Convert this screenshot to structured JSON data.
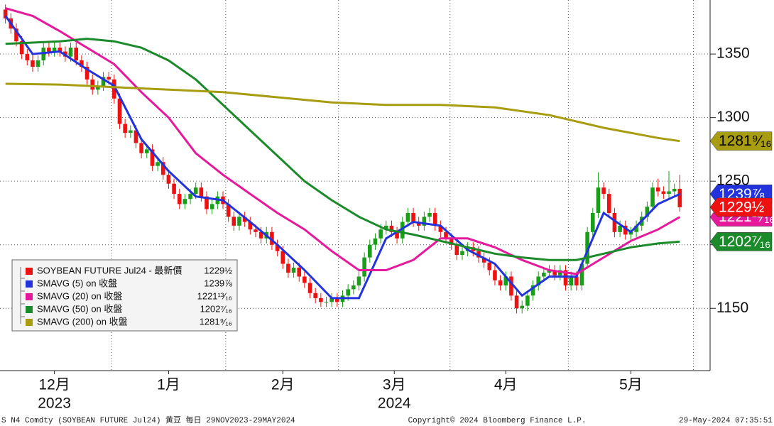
{
  "chart_data": {
    "type": "candlestick",
    "ohlc": [
      [
        1385,
        1389,
        1374,
        1378
      ],
      [
        1378,
        1382,
        1366,
        1370
      ],
      [
        1370,
        1374,
        1356,
        1360
      ],
      [
        1360,
        1364,
        1346,
        1350
      ],
      [
        1350,
        1354,
        1341,
        1345
      ],
      [
        1345,
        1349,
        1336,
        1340
      ],
      [
        1340,
        1349,
        1336,
        1345
      ],
      [
        1345,
        1359,
        1341,
        1355
      ],
      [
        1355,
        1359,
        1348,
        1352
      ],
      [
        1352,
        1359,
        1348,
        1355
      ],
      [
        1355,
        1359,
        1348,
        1352
      ],
      [
        1352,
        1356,
        1344,
        1348
      ],
      [
        1348,
        1359,
        1344,
        1355
      ],
      [
        1355,
        1359,
        1341,
        1345
      ],
      [
        1345,
        1349,
        1336,
        1340
      ],
      [
        1340,
        1344,
        1326,
        1330
      ],
      [
        1330,
        1334,
        1318,
        1322
      ],
      [
        1322,
        1329,
        1318,
        1325
      ],
      [
        1325,
        1336,
        1321,
        1332
      ],
      [
        1332,
        1336,
        1326,
        1330
      ],
      [
        1330,
        1334,
        1311,
        1315
      ],
      [
        1315,
        1319,
        1291,
        1295
      ],
      [
        1295,
        1299,
        1284,
        1288
      ],
      [
        1288,
        1294,
        1284,
        1290
      ],
      [
        1290,
        1294,
        1276,
        1280
      ],
      [
        1280,
        1284,
        1268,
        1272
      ],
      [
        1272,
        1279,
        1268,
        1275
      ],
      [
        1275,
        1279,
        1258,
        1262
      ],
      [
        1262,
        1269,
        1258,
        1265
      ],
      [
        1265,
        1269,
        1251,
        1255
      ],
      [
        1255,
        1259,
        1244,
        1248
      ],
      [
        1248,
        1252,
        1236,
        1240
      ],
      [
        1240,
        1244,
        1228,
        1232
      ],
      [
        1232,
        1240,
        1228,
        1236
      ],
      [
        1236,
        1244,
        1232,
        1240
      ],
      [
        1240,
        1249,
        1236,
        1245
      ],
      [
        1245,
        1249,
        1234,
        1238
      ],
      [
        1238,
        1242,
        1224,
        1228
      ],
      [
        1228,
        1236,
        1224,
        1232
      ],
      [
        1232,
        1242,
        1228,
        1238
      ],
      [
        1238,
        1242,
        1228,
        1232
      ],
      [
        1232,
        1236,
        1218,
        1222
      ],
      [
        1222,
        1226,
        1211,
        1215
      ],
      [
        1215,
        1226,
        1211,
        1222
      ],
      [
        1222,
        1226,
        1214,
        1218
      ],
      [
        1218,
        1222,
        1208,
        1212
      ],
      [
        1212,
        1216,
        1206,
        1210
      ],
      [
        1210,
        1214,
        1201,
        1205
      ],
      [
        1205,
        1214,
        1201,
        1210
      ],
      [
        1210,
        1214,
        1196,
        1200
      ],
      [
        1200,
        1204,
        1191,
        1195
      ],
      [
        1195,
        1199,
        1181,
        1185
      ],
      [
        1185,
        1189,
        1174,
        1178
      ],
      [
        1178,
        1186,
        1174,
        1182
      ],
      [
        1182,
        1186,
        1171,
        1175
      ],
      [
        1175,
        1179,
        1166,
        1170
      ],
      [
        1170,
        1174,
        1158,
        1162
      ],
      [
        1162,
        1166,
        1154,
        1158
      ],
      [
        1158,
        1162,
        1151,
        1155
      ],
      [
        1155,
        1159,
        1151,
        1155
      ],
      [
        1155,
        1162,
        1151,
        1158
      ],
      [
        1158,
        1162,
        1151,
        1155
      ],
      [
        1155,
        1164,
        1151,
        1160
      ],
      [
        1160,
        1169,
        1156,
        1165
      ],
      [
        1165,
        1172,
        1161,
        1168
      ],
      [
        1168,
        1179,
        1164,
        1175
      ],
      [
        1175,
        1194,
        1171,
        1190
      ],
      [
        1190,
        1204,
        1186,
        1200
      ],
      [
        1200,
        1209,
        1196,
        1205
      ],
      [
        1205,
        1216,
        1201,
        1212
      ],
      [
        1212,
        1219,
        1208,
        1215
      ],
      [
        1215,
        1219,
        1206,
        1210
      ],
      [
        1210,
        1214,
        1201,
        1205
      ],
      [
        1205,
        1222,
        1201,
        1218
      ],
      [
        1218,
        1229,
        1214,
        1225
      ],
      [
        1225,
        1229,
        1214,
        1218
      ],
      [
        1218,
        1222,
        1211,
        1215
      ],
      [
        1215,
        1226,
        1211,
        1222
      ],
      [
        1222,
        1229,
        1218,
        1225
      ],
      [
        1225,
        1229,
        1211,
        1215
      ],
      [
        1215,
        1219,
        1206,
        1210
      ],
      [
        1210,
        1214,
        1201,
        1205
      ],
      [
        1205,
        1209,
        1196,
        1200
      ],
      [
        1200,
        1204,
        1188,
        1192
      ],
      [
        1192,
        1199,
        1188,
        1195
      ],
      [
        1195,
        1202,
        1191,
        1198
      ],
      [
        1198,
        1202,
        1191,
        1195
      ],
      [
        1195,
        1199,
        1186,
        1190
      ],
      [
        1190,
        1194,
        1182,
        1186
      ],
      [
        1186,
        1190,
        1176,
        1180
      ],
      [
        1180,
        1184,
        1168,
        1172
      ],
      [
        1172,
        1176,
        1164,
        1168
      ],
      [
        1168,
        1179,
        1164,
        1175
      ],
      [
        1175,
        1179,
        1156,
        1160
      ],
      [
        1160,
        1164,
        1146,
        1150
      ],
      [
        1150,
        1156,
        1146,
        1152
      ],
      [
        1152,
        1164,
        1148,
        1160
      ],
      [
        1160,
        1172,
        1156,
        1168
      ],
      [
        1168,
        1179,
        1164,
        1175
      ],
      [
        1175,
        1182,
        1171,
        1178
      ],
      [
        1178,
        1184,
        1174,
        1180
      ],
      [
        1180,
        1184,
        1172,
        1176
      ],
      [
        1176,
        1184,
        1172,
        1180
      ],
      [
        1180,
        1184,
        1164,
        1168
      ],
      [
        1168,
        1179,
        1164,
        1175
      ],
      [
        1175,
        1179,
        1164,
        1168
      ],
      [
        1168,
        1189,
        1164,
        1185
      ],
      [
        1185,
        1214,
        1181,
        1210
      ],
      [
        1210,
        1229,
        1206,
        1225
      ],
      [
        1225,
        1257,
        1221,
        1245
      ],
      [
        1245,
        1249,
        1236,
        1240
      ],
      [
        1240,
        1244,
        1221,
        1225
      ],
      [
        1225,
        1229,
        1206,
        1210
      ],
      [
        1210,
        1219,
        1206,
        1215
      ],
      [
        1215,
        1219,
        1204,
        1208
      ],
      [
        1208,
        1214,
        1204,
        1210
      ],
      [
        1210,
        1219,
        1206,
        1215
      ],
      [
        1215,
        1226,
        1211,
        1222
      ],
      [
        1222,
        1234,
        1218,
        1230
      ],
      [
        1230,
        1249,
        1226,
        1245
      ],
      [
        1245,
        1252,
        1238,
        1242
      ],
      [
        1242,
        1246,
        1236,
        1240
      ],
      [
        1240,
        1258,
        1236,
        1242
      ],
      [
        1242,
        1248,
        1238,
        1244
      ],
      [
        1244,
        1255,
        1226,
        1229.5
      ]
    ],
    "up_color": "#1a9e1a",
    "down_color": "#ee1111",
    "last": {
      "name": "SOYBEAN FUTURE Jul24 - 最新價",
      "color": "#ee1111",
      "value": 1229.5,
      "value_label": "1229½"
    },
    "series": [
      {
        "name": "SMAVG (5)  on 收盤",
        "color": "#2233dd",
        "x": [
          0,
          5,
          10,
          15,
          20,
          25,
          30,
          35,
          40,
          45,
          50,
          55,
          60,
          65,
          70,
          75,
          80,
          85,
          90,
          95,
          100,
          105,
          110,
          115,
          120,
          124
        ],
        "values": [
          1380,
          1350,
          1352,
          1338,
          1325,
          1283,
          1258,
          1238,
          1235,
          1218,
          1200,
          1180,
          1158,
          1158,
          1205,
          1218,
          1215,
          1196,
          1185,
          1160,
          1175,
          1175,
          1225,
          1210,
          1232,
          1239.875
        ],
        "last_label": "1239⅞"
      },
      {
        "name": "SMAVG (20)  on 收盤",
        "color": "#e6199c",
        "x": [
          0,
          5,
          10,
          15,
          20,
          25,
          30,
          35,
          40,
          45,
          50,
          55,
          60,
          65,
          70,
          75,
          80,
          85,
          90,
          95,
          100,
          105,
          110,
          115,
          120,
          124
        ],
        "values": [
          1386,
          1380,
          1368,
          1355,
          1342,
          1320,
          1300,
          1272,
          1255,
          1240,
          1225,
          1212,
          1195,
          1180,
          1180,
          1188,
          1205,
          1205,
          1198,
          1188,
          1180,
          1177,
          1190,
          1203,
          1212,
          1221.8125
        ],
        "last_label": "1221¹³⁄₁₆"
      },
      {
        "name": "SMAVG (50)  on 收盤",
        "color": "#1a8a2a",
        "x": [
          0,
          5,
          10,
          15,
          20,
          25,
          30,
          35,
          40,
          45,
          50,
          55,
          60,
          65,
          70,
          75,
          80,
          85,
          90,
          95,
          100,
          105,
          110,
          115,
          120,
          124
        ],
        "values": [
          1358,
          1359,
          1360,
          1362,
          1360,
          1355,
          1345,
          1330,
          1310,
          1290,
          1270,
          1250,
          1235,
          1222,
          1212,
          1208,
          1203,
          1198,
          1193,
          1190,
          1188,
          1188,
          1193,
          1198,
          1201,
          1202.4375
        ],
        "last_label": "1202⁷⁄₁₆"
      },
      {
        "name": "SMAVG (200)  on 收盤",
        "color": "#a89c10",
        "x": [
          0,
          10,
          20,
          30,
          40,
          50,
          60,
          70,
          80,
          90,
          100,
          110,
          120,
          124
        ],
        "values": [
          1326.6,
          1326,
          1324,
          1322,
          1320,
          1316,
          1312,
          1310,
          1310,
          1308,
          1302,
          1292,
          1284,
          1281.5625
        ],
        "last_label": "1281⁹⁄₁₆"
      }
    ],
    "xlim": [
      -1,
      125
    ],
    "ylim": [
      1101,
      1392.5
    ],
    "yticks": [
      1150,
      1200,
      1250,
      1300,
      1350
    ],
    "xticks": [
      {
        "value": 9,
        "label": "12月"
      },
      {
        "value": 30,
        "label": "1月"
      },
      {
        "value": 51,
        "label": "2月"
      },
      {
        "value": 71.5,
        "label": "3月"
      },
      {
        "value": 92,
        "label": "4月"
      },
      {
        "value": 115,
        "label": "5月"
      }
    ],
    "year_labels": [
      {
        "value": 9,
        "label": "2023"
      },
      {
        "value": 71.5,
        "label": "2024"
      }
    ],
    "grid": true,
    "footer": {
      "left": "S N4 Comdty (SOYBEAN FUTURE    Jul24) 黄豆  每日 29NOV2023-29MAY2024",
      "center": "Copyright© 2024 Bloomberg Finance L.P.",
      "right": "29-May-2024 07:35:51"
    }
  }
}
